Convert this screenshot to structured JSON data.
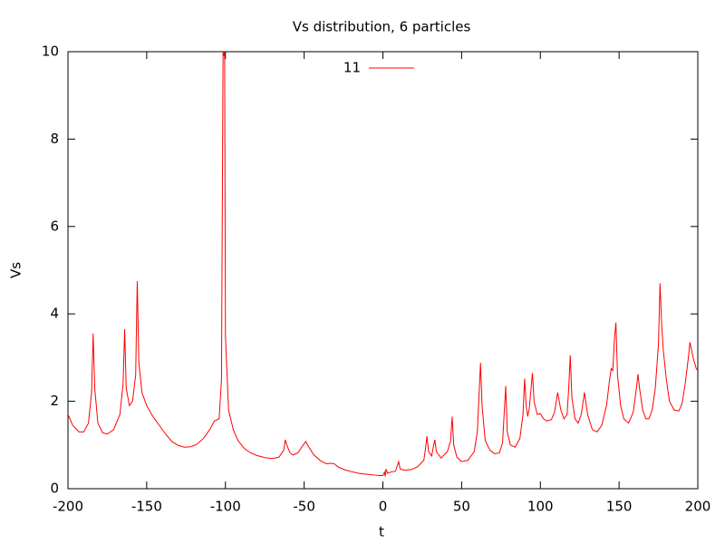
{
  "chart_data": {
    "type": "line",
    "title": "Vs distribution, 6 particles",
    "xlabel": "t",
    "ylabel": "Vs",
    "xlim": [
      -200,
      200
    ],
    "ylim": [
      0,
      10
    ],
    "xticks": [
      -200,
      -150,
      -100,
      -50,
      0,
      50,
      100,
      150,
      200
    ],
    "yticks": [
      0,
      2,
      4,
      6,
      8,
      10
    ],
    "grid": false,
    "legend": "top",
    "x": [
      -200,
      -197,
      -193,
      -190,
      -187,
      -185,
      -184,
      -183,
      -181,
      -178,
      -175,
      -171,
      -167,
      -165,
      -164,
      -163,
      -161,
      -159,
      -157,
      -156,
      -155,
      -153,
      -150,
      -146,
      -142,
      -138,
      -134,
      -130,
      -126,
      -122,
      -118,
      -114,
      -110,
      -107,
      -104,
      -102.5,
      -101.5,
      -101,
      -100.5,
      -100,
      -98,
      -95,
      -92,
      -88,
      -84,
      -80,
      -75,
      -70,
      -66,
      -63,
      -62,
      -61,
      -59,
      -57,
      -54,
      -51,
      -49,
      -47,
      -44,
      -40,
      -36,
      -33,
      -31,
      -28,
      -24,
      -20,
      -15,
      -10,
      -5,
      -2,
      0,
      1,
      1.5,
      2,
      3,
      5,
      8,
      10,
      11,
      14,
      18,
      22,
      26,
      27,
      28,
      29,
      31,
      32,
      33,
      34,
      37,
      41,
      43,
      44,
      45,
      47,
      50,
      54,
      58,
      60,
      61,
      62,
      63,
      65,
      68,
      71,
      74,
      76,
      78,
      79,
      81,
      84,
      87,
      89,
      90,
      91,
      92,
      93,
      95,
      96,
      98,
      100,
      102,
      104,
      107,
      109,
      111,
      113,
      115,
      117,
      118,
      119,
      120,
      122,
      124,
      126,
      128,
      130,
      133,
      136,
      139,
      142,
      144,
      145,
      146,
      147,
      148,
      149,
      151,
      153,
      156,
      159,
      161,
      162,
      163,
      165,
      167,
      169,
      171,
      173,
      175,
      176,
      177,
      178,
      180,
      182,
      185,
      188,
      190,
      192,
      194,
      195,
      197,
      199,
      200
    ],
    "series": [
      {
        "name": "11",
        "color": "#ff0000",
        "values": [
          1.7,
          1.45,
          1.3,
          1.3,
          1.5,
          2.2,
          3.55,
          2.3,
          1.5,
          1.28,
          1.25,
          1.35,
          1.7,
          2.4,
          3.65,
          2.3,
          1.9,
          2.0,
          2.6,
          4.75,
          2.9,
          2.2,
          1.9,
          1.65,
          1.45,
          1.25,
          1.08,
          0.99,
          0.95,
          0.96,
          1.02,
          1.15,
          1.35,
          1.55,
          1.6,
          2.5,
          10,
          9.9,
          10,
          3.5,
          1.8,
          1.35,
          1.1,
          0.92,
          0.82,
          0.76,
          0.71,
          0.69,
          0.72,
          0.88,
          1.12,
          1.0,
          0.82,
          0.77,
          0.82,
          0.98,
          1.08,
          0.95,
          0.78,
          0.65,
          0.57,
          0.58,
          0.57,
          0.49,
          0.43,
          0.39,
          0.35,
          0.33,
          0.31,
          0.3,
          0.3,
          0.38,
          0.28,
          0.45,
          0.35,
          0.38,
          0.4,
          0.62,
          0.45,
          0.42,
          0.44,
          0.5,
          0.65,
          0.9,
          1.2,
          0.85,
          0.75,
          0.95,
          1.12,
          0.85,
          0.7,
          0.85,
          1.1,
          1.65,
          1.0,
          0.72,
          0.62,
          0.65,
          0.85,
          1.3,
          2.1,
          2.88,
          1.9,
          1.1,
          0.88,
          0.8,
          0.82,
          1.05,
          2.35,
          1.3,
          1.0,
          0.95,
          1.15,
          1.7,
          2.52,
          1.9,
          1.65,
          1.85,
          2.65,
          2.0,
          1.7,
          1.72,
          1.6,
          1.55,
          1.58,
          1.75,
          2.2,
          1.8,
          1.6,
          1.7,
          2.3,
          3.05,
          2.1,
          1.6,
          1.5,
          1.7,
          2.2,
          1.7,
          1.35,
          1.3,
          1.45,
          1.9,
          2.5,
          2.75,
          2.7,
          3.4,
          3.8,
          2.6,
          1.9,
          1.6,
          1.5,
          1.75,
          2.3,
          2.62,
          2.3,
          1.8,
          1.6,
          1.6,
          1.8,
          2.3,
          3.3,
          4.7,
          3.8,
          3.2,
          2.5,
          2.0,
          1.8,
          1.78,
          1.95,
          2.4,
          3.0,
          3.35,
          3.0,
          2.75,
          2.7
        ]
      }
    ]
  }
}
